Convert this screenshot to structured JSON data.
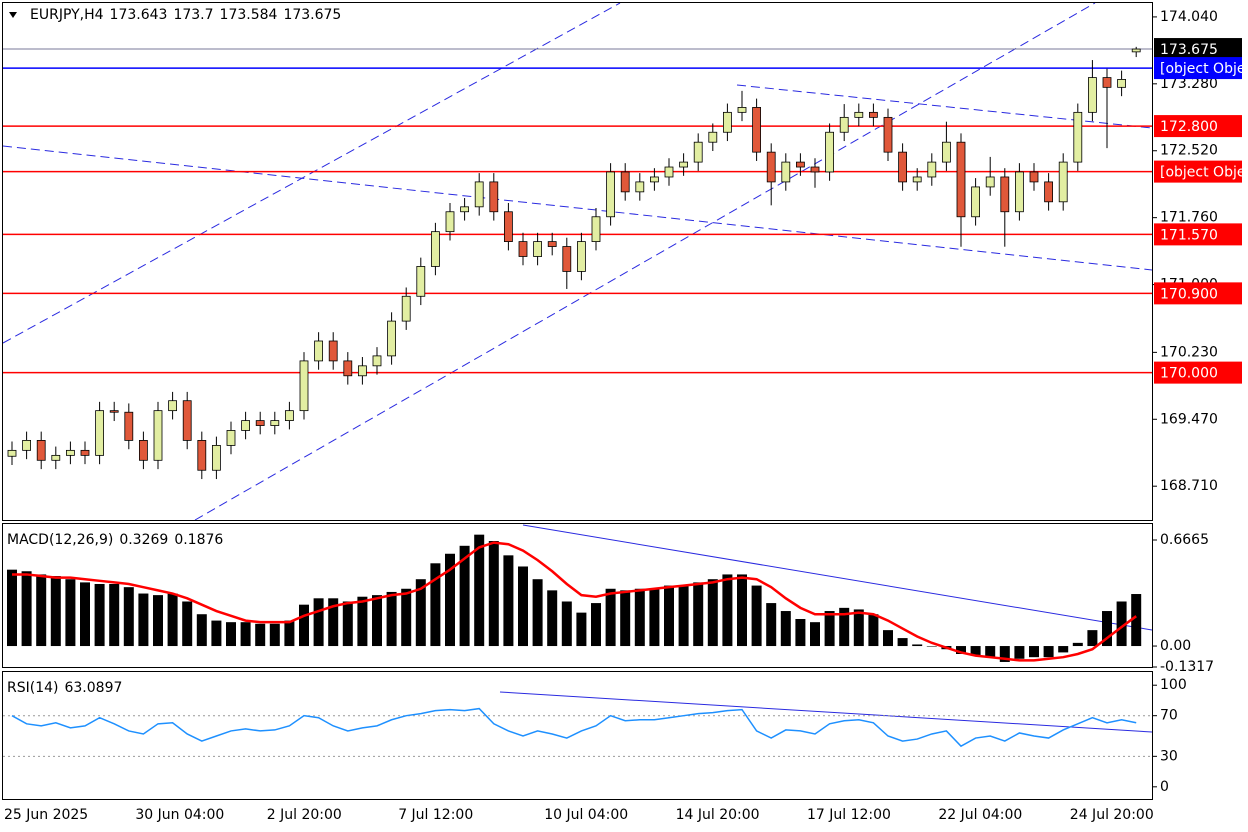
{
  "chart_data": {
    "type": "candlestick",
    "symbol": "EURJPY,H4",
    "categories": [
      "25 Jun 2025",
      null,
      null,
      null,
      null,
      null,
      null,
      null,
      null,
      "30 Jun 04:00",
      null,
      null,
      null,
      null,
      null,
      null,
      null,
      null,
      "2 Jul 20:00",
      null,
      null,
      null,
      null,
      null,
      null,
      null,
      null,
      "7 Jul 12:00",
      null,
      null,
      null,
      null,
      null,
      null,
      null,
      null,
      null,
      "10 Jul 04:00",
      null,
      null,
      null,
      null,
      null,
      null,
      null,
      null,
      "14 Jul 20:00",
      null,
      null,
      null,
      null,
      null,
      null,
      null,
      null,
      "17 Jul 12:00",
      null,
      null,
      null,
      null,
      null,
      null,
      null,
      null,
      "22 Jul 04:00",
      null,
      null,
      null,
      null,
      null,
      null,
      null,
      null,
      "24 Jul 20:00",
      null,
      null,
      null,
      null
    ],
    "open": [
      169.05,
      169.117,
      169.23,
      169.004,
      169.06,
      169.117,
      169.06,
      169.568,
      169.55,
      169.23,
      169.004,
      169.568,
      169.681,
      169.23,
      168.891,
      169.173,
      169.343,
      169.455,
      169.399,
      169.455,
      169.568,
      170.133,
      170.359,
      170.133,
      169.964,
      170.077,
      170.19,
      170.585,
      170.867,
      171.206,
      171.601,
      171.827,
      171.883,
      172.166,
      171.827,
      171.488,
      171.319,
      171.488,
      171.432,
      171.149,
      171.488,
      171.77,
      172.279,
      172.053,
      172.166,
      172.222,
      172.335,
      172.391,
      172.617,
      172.73,
      172.956,
      173.012,
      172.504,
      172.166,
      172.391,
      172.335,
      172.279,
      172.73,
      172.899,
      172.956,
      172.899,
      172.504,
      172.166,
      172.222,
      172.391,
      172.617,
      171.77,
      172.109,
      172.222,
      171.827,
      172.279,
      172.166,
      171.94,
      172.391,
      172.956,
      173.351,
      173.24,
      173.643
    ],
    "high": [
      169.217,
      169.33,
      169.33,
      169.16,
      169.217,
      169.217,
      169.668,
      169.668,
      169.65,
      169.33,
      169.668,
      169.781,
      169.781,
      169.33,
      169.273,
      169.443,
      169.555,
      169.555,
      169.555,
      169.668,
      170.233,
      170.459,
      170.459,
      170.233,
      170.177,
      170.29,
      170.685,
      170.967,
      171.306,
      171.701,
      171.927,
      171.983,
      172.266,
      172.266,
      171.927,
      171.588,
      171.588,
      171.588,
      171.532,
      171.588,
      171.87,
      172.379,
      172.379,
      172.266,
      172.322,
      172.435,
      172.491,
      172.717,
      172.83,
      173.056,
      173.2,
      173.112,
      172.604,
      172.491,
      172.491,
      172.435,
      172.83,
      173.05,
      173.056,
      173.056,
      172.999,
      172.604,
      172.322,
      172.491,
      172.85,
      172.717,
      172.209,
      172.45,
      172.322,
      172.379,
      172.379,
      172.266,
      172.491,
      173.056,
      173.55,
      173.451,
      173.43,
      173.7
    ],
    "low": [
      168.95,
      169.017,
      168.904,
      168.904,
      168.96,
      168.96,
      168.96,
      169.45,
      169.13,
      168.904,
      168.904,
      169.468,
      169.13,
      168.791,
      168.791,
      169.073,
      169.243,
      169.299,
      169.299,
      169.355,
      169.468,
      170.033,
      170.033,
      169.864,
      169.864,
      169.977,
      170.09,
      170.485,
      170.767,
      171.106,
      171.501,
      171.727,
      171.783,
      171.727,
      171.388,
      171.219,
      171.219,
      171.332,
      170.95,
      171.049,
      171.388,
      171.67,
      171.953,
      171.953,
      172.066,
      172.122,
      172.235,
      172.291,
      172.517,
      172.63,
      172.856,
      172.404,
      171.9,
      172.066,
      172.235,
      172.1,
      172.179,
      172.63,
      172.799,
      172.799,
      172.404,
      172.066,
      172.066,
      172.122,
      172.291,
      171.43,
      171.67,
      172.009,
      171.43,
      171.727,
      172.066,
      171.84,
      171.84,
      172.291,
      172.856,
      172.55,
      173.14,
      173.584
    ],
    "close": [
      169.117,
      169.23,
      169.004,
      169.06,
      169.117,
      169.06,
      169.568,
      169.55,
      169.23,
      169.004,
      169.568,
      169.681,
      169.23,
      168.891,
      169.173,
      169.343,
      169.455,
      169.399,
      169.455,
      169.568,
      170.133,
      170.359,
      170.133,
      169.964,
      170.077,
      170.19,
      170.585,
      170.867,
      171.206,
      171.601,
      171.827,
      171.883,
      172.166,
      171.827,
      171.488,
      171.319,
      171.488,
      171.432,
      171.149,
      171.488,
      171.77,
      172.279,
      172.053,
      172.166,
      172.222,
      172.335,
      172.391,
      172.617,
      172.73,
      172.956,
      173.012,
      172.504,
      172.166,
      172.391,
      172.335,
      172.279,
      172.73,
      172.899,
      172.956,
      172.899,
      172.504,
      172.166,
      172.222,
      172.391,
      172.617,
      171.77,
      172.109,
      172.222,
      171.827,
      172.279,
      172.166,
      171.94,
      172.391,
      172.956,
      173.351,
      173.24,
      173.33,
      173.675
    ],
    "up_color": "#e2eea2",
    "down_color": "#e0583a",
    "ylim": [
      168.326,
      174.198
    ],
    "yticks": [
      {
        "value": 174.04,
        "label": "174.040"
      },
      {
        "value": 173.28,
        "label": "173.280"
      },
      {
        "value": 172.52,
        "label": "172.520"
      },
      {
        "value": 171.76,
        "label": "171.760"
      },
      {
        "value": 171.0,
        "label": "171.000"
      },
      {
        "value": 170.23,
        "label": "170.230"
      },
      {
        "value": 169.47,
        "label": "169.470"
      },
      {
        "value": 168.71,
        "label": "168.710"
      }
    ],
    "last_price": 173.675,
    "levels": [
      {
        "value": 173.459,
        "color": "#0000ff"
      },
      {
        "value": 172.8,
        "label": "172.800",
        "color": "#ff0000"
      },
      {
        "value": 172.283,
        "color": "#ff0000"
      },
      {
        "value": 171.57,
        "label": "171.570",
        "color": "#ff0000"
      },
      {
        "value": 170.9,
        "label": "170.900",
        "color": "#ff0000"
      },
      {
        "value": 170.0,
        "label": "170.000",
        "color": "#ff0000"
      }
    ],
    "indicators": [
      {
        "type": "macd",
        "name": "MACD(12,26,9)",
        "color": "#000000",
        "signal_color": "#ff0000",
        "histogram": [
          0.48,
          0.47,
          0.45,
          0.44,
          0.42,
          0.4,
          0.39,
          0.39,
          0.37,
          0.33,
          0.32,
          0.33,
          0.28,
          0.2,
          0.16,
          0.15,
          0.15,
          0.14,
          0.14,
          0.16,
          0.26,
          0.3,
          0.3,
          0.28,
          0.31,
          0.32,
          0.34,
          0.36,
          0.42,
          0.52,
          0.58,
          0.63,
          0.7,
          0.66,
          0.57,
          0.5,
          0.42,
          0.35,
          0.28,
          0.21,
          0.27,
          0.36,
          0.35,
          0.36,
          0.36,
          0.38,
          0.38,
          0.4,
          0.42,
          0.45,
          0.45,
          0.38,
          0.27,
          0.22,
          0.17,
          0.15,
          0.22,
          0.24,
          0.23,
          0.2,
          0.1,
          0.05,
          0.01,
          0.0,
          -0.02,
          -0.05,
          -0.06,
          -0.07,
          -0.1,
          -0.08,
          -0.07,
          -0.07,
          -0.04,
          0.02,
          0.1,
          0.22,
          0.28,
          0.3269
        ],
        "signal": [
          0.45,
          0.45,
          0.44,
          0.43,
          0.43,
          0.42,
          0.41,
          0.4,
          0.39,
          0.37,
          0.35,
          0.33,
          0.3,
          0.26,
          0.22,
          0.19,
          0.16,
          0.15,
          0.15,
          0.15,
          0.19,
          0.22,
          0.25,
          0.27,
          0.28,
          0.3,
          0.32,
          0.33,
          0.36,
          0.42,
          0.48,
          0.55,
          0.62,
          0.65,
          0.64,
          0.6,
          0.54,
          0.47,
          0.39,
          0.32,
          0.31,
          0.33,
          0.34,
          0.35,
          0.36,
          0.37,
          0.38,
          0.39,
          0.4,
          0.42,
          0.43,
          0.42,
          0.37,
          0.3,
          0.24,
          0.2,
          0.2,
          0.2,
          0.21,
          0.2,
          0.16,
          0.11,
          0.06,
          0.02,
          -0.01,
          -0.04,
          -0.06,
          -0.07,
          -0.08,
          -0.09,
          -0.09,
          -0.08,
          -0.07,
          -0.05,
          -0.02,
          0.05,
          0.12,
          0.1876
        ],
        "ylim": [
          -0.1317,
          0.767
        ],
        "yticks": [
          0.6665,
          {
            "value": 0,
            "label": "0.00"
          },
          -0.1317
        ]
      },
      {
        "type": "rsi",
        "name": "RSI(14)",
        "color": "#1e90ff",
        "values": [
          70,
          62,
          60,
          63,
          58,
          60,
          68,
          62,
          55,
          52,
          62,
          63,
          52,
          45,
          50,
          55,
          57,
          55,
          56,
          60,
          70,
          68,
          60,
          55,
          58,
          60,
          66,
          70,
          72,
          75,
          76,
          75,
          77,
          62,
          55,
          50,
          55,
          52,
          48,
          55,
          60,
          70,
          65,
          66,
          66,
          68,
          70,
          72,
          73,
          75,
          76,
          55,
          48,
          56,
          55,
          52,
          62,
          65,
          66,
          63,
          50,
          45,
          47,
          52,
          55,
          40,
          48,
          50,
          45,
          53,
          50,
          48,
          56,
          62,
          68,
          63,
          66,
          63.0897
        ],
        "ylim": [
          -12,
          113
        ],
        "yticks": [
          100,
          70,
          30,
          0
        ],
        "dotted_levels": [
          70,
          30
        ]
      }
    ]
  }
}
